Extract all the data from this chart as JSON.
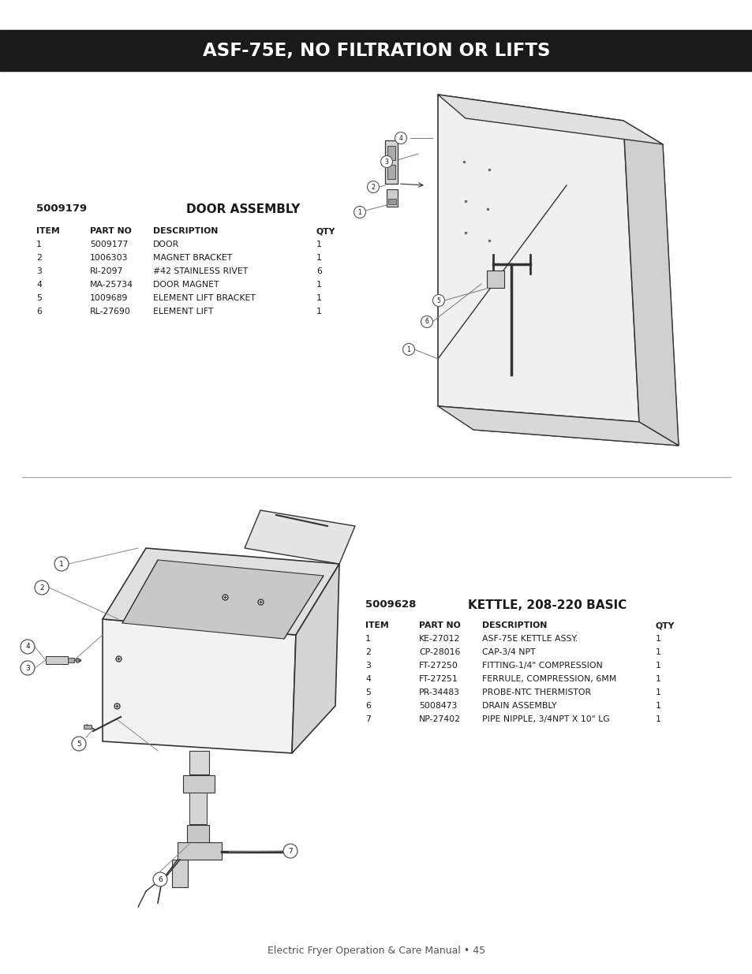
{
  "title": "ASF-75E, NO FILTRATION OR LIFTS",
  "title_bg": "#1a1a1a",
  "title_color": "#ffffff",
  "title_fontsize": 16.5,
  "door_assembly_number": "5009179",
  "door_assembly_title": "DOOR ASSEMBLY",
  "door_table_headers": [
    "ITEM",
    "PART NO",
    "DESCRIPTION",
    "QTY"
  ],
  "door_table_rows": [
    [
      "1",
      "5009177",
      "DOOR",
      "1"
    ],
    [
      "2",
      "1006303",
      "MAGNET BRACKET",
      "1"
    ],
    [
      "3",
      "RI-2097",
      "#42 STAINLESS RIVET",
      "6"
    ],
    [
      "4",
      "MA-25734",
      "DOOR MAGNET",
      "1"
    ],
    [
      "5",
      "1009689",
      "ELEMENT LIFT BRACKET",
      "1"
    ],
    [
      "6",
      "RL-27690",
      "ELEMENT LIFT",
      "1"
    ]
  ],
  "kettle_assembly_number": "5009628",
  "kettle_assembly_title": "KETTLE, 208-220 BASIC",
  "kettle_table_headers": [
    "ITEM",
    "PART NO",
    "DESCRIPTION",
    "QTY"
  ],
  "kettle_table_rows": [
    [
      "1",
      "KE-27012",
      "ASF-75E KETTLE ASSY.",
      "1"
    ],
    [
      "2",
      "CP-28016",
      "CAP-3/4 NPT",
      "1"
    ],
    [
      "3",
      "FT-27250",
      "FITTING-1/4\" COMPRESSION",
      "1"
    ],
    [
      "4",
      "FT-27251",
      "FERRULE, COMPRESSION, 6MM",
      "1"
    ],
    [
      "5",
      "PR-34483",
      "PROBE-NTC THERMISTOR",
      "1"
    ],
    [
      "6",
      "5008473",
      "DRAIN ASSEMBLY",
      "1"
    ],
    [
      "7",
      "NP-27402",
      "PIPE NIPPLE, 3/4NPT X 10\" LG",
      "1"
    ]
  ],
  "footer_text": "Electric Fryer Operation & Care Manual • 45",
  "bg_color": "#ffffff",
  "text_color": "#1a1a1a",
  "line_color": "#888888",
  "diagram_color": "#333333"
}
